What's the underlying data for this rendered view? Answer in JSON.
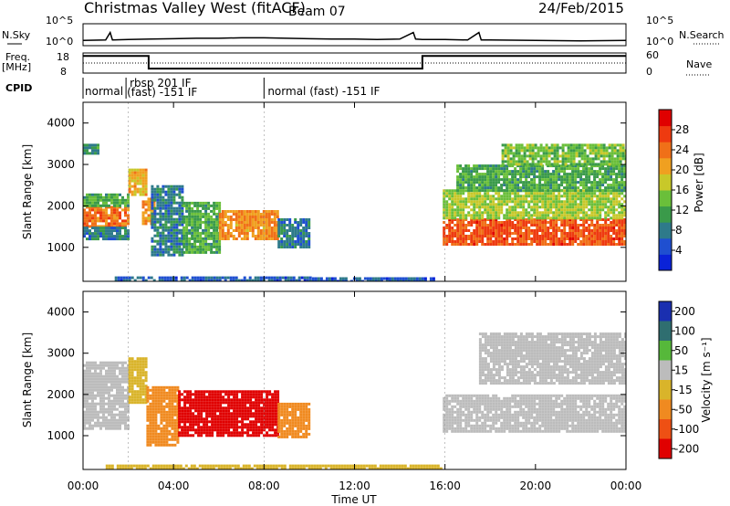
{
  "header": {
    "title": "Christmas Valley West (fitACF)",
    "beam": "Beam 07",
    "date": "24/Feb/2015"
  },
  "labels": {
    "nsky": "N.Sky",
    "nsearch": "N.Search",
    "freq": "Freq.",
    "mhz": "[MHz]",
    "nave": "Nave",
    "cpid": "CPID",
    "ylabel": "Slant Range [km]",
    "xlabel": "Time UT",
    "power_label": "Power [dB]",
    "velocity_label": "Velocity [m s⁻¹]"
  },
  "sky_axis": {
    "left_ticks": [
      "10^5",
      "10^0"
    ],
    "right_ticks": [
      "10^5",
      "10^0"
    ]
  },
  "freq_axis": {
    "left_ticks": [
      "18",
      "8"
    ],
    "right_ticks": [
      "60",
      "0"
    ]
  },
  "cpid_segments": [
    {
      "label": "normal",
      "start_hour": 0.0,
      "end_hour": 1.9
    },
    {
      "label": "rbsp 201 IF",
      "start_hour": 1.9,
      "end_hour": 8.0
    },
    {
      "label": "(fast) -151 IF",
      "start_hour": 1.9,
      "end_hour": 8.0
    },
    {
      "label": "normal (fast) -151 IF",
      "start_hour": 8.0,
      "end_hour": 24.0
    }
  ],
  "chart_data": [
    {
      "type": "line",
      "name": "sky-noise",
      "x": [
        0,
        1,
        1.2,
        1.3,
        2,
        3,
        4,
        5,
        6,
        7,
        8,
        9,
        10,
        11,
        12,
        13,
        14,
        14.6,
        14.7,
        15,
        16,
        17,
        17.5,
        17.6,
        18,
        20,
        22,
        24
      ],
      "y": [
        1.2,
        1.3,
        3.0,
        1.3,
        1.4,
        1.5,
        1.6,
        1.7,
        1.7,
        1.8,
        1.8,
        1.7,
        1.6,
        1.5,
        1.5,
        1.4,
        1.5,
        3.0,
        1.5,
        1.4,
        1.4,
        1.3,
        3.0,
        1.3,
        1.3,
        1.2,
        1.1,
        1.2
      ],
      "ylim": [
        0,
        5
      ],
      "xlim": [
        0,
        24
      ]
    },
    {
      "type": "line",
      "name": "frequency",
      "x": [
        0,
        2.9,
        2.9,
        15.0,
        15.0,
        24
      ],
      "y": [
        16.5,
        16.5,
        10.2,
        10.2,
        16.5,
        16.5
      ],
      "ylim": [
        8,
        18
      ],
      "xlim": [
        0,
        24
      ]
    },
    {
      "type": "line",
      "name": "nave",
      "x": [
        0,
        24
      ],
      "y": [
        30,
        30
      ],
      "ylim": [
        0,
        60
      ],
      "xlim": [
        0,
        24
      ]
    },
    {
      "type": "heatmap",
      "name": "power",
      "xlabel": "",
      "ylabel": "Slant Range [km]",
      "xlim": [
        0,
        24
      ],
      "ylim": [
        180,
        4500
      ],
      "yticks": [
        1000,
        2000,
        3000,
        4000
      ],
      "colorbar": {
        "label": "Power [dB]",
        "ticks": [
          4,
          8,
          12,
          16,
          20,
          24,
          28
        ],
        "range": [
          0,
          32
        ]
      },
      "regions": [
        {
          "t0": 0.0,
          "t1": 2.0,
          "r0": 1500,
          "r1": 2000,
          "value": 24
        },
        {
          "t0": 0.0,
          "t1": 2.0,
          "r0": 2000,
          "r1": 2300,
          "value": 12
        },
        {
          "t0": 0.0,
          "t1": 2.0,
          "r0": 1200,
          "r1": 1500,
          "value": 8
        },
        {
          "t0": 0.0,
          "t1": 0.7,
          "r0": 3300,
          "r1": 3500,
          "value": 10
        },
        {
          "t0": 2.0,
          "t1": 2.8,
          "r0": 2300,
          "r1": 2900,
          "value": 20
        },
        {
          "t0": 2.6,
          "t1": 3.2,
          "r0": 1600,
          "r1": 2200,
          "value": 22
        },
        {
          "t0": 3.0,
          "t1": 4.4,
          "r0": 800,
          "r1": 2500,
          "value": 8
        },
        {
          "t0": 4.4,
          "t1": 6.0,
          "r0": 900,
          "r1": 2100,
          "value": 12
        },
        {
          "t0": 6.0,
          "t1": 8.6,
          "r0": 1200,
          "r1": 1900,
          "value": 22
        },
        {
          "t0": 8.6,
          "t1": 10.0,
          "r0": 1000,
          "r1": 1700,
          "value": 8
        },
        {
          "t0": 1.4,
          "t1": 10.0,
          "r0": 180,
          "r1": 300,
          "value": 6
        },
        {
          "t0": 10.0,
          "t1": 15.5,
          "r0": 180,
          "r1": 280,
          "value": 6
        },
        {
          "t0": 15.9,
          "t1": 24.0,
          "r0": 1100,
          "r1": 1700,
          "value": 26
        },
        {
          "t0": 15.9,
          "t1": 24.0,
          "r0": 1700,
          "r1": 2400,
          "value": 16
        },
        {
          "t0": 16.5,
          "t1": 24.0,
          "r0": 2400,
          "r1": 3000,
          "value": 12
        },
        {
          "t0": 18.5,
          "t1": 24.0,
          "r0": 3000,
          "r1": 3500,
          "value": 14
        }
      ]
    },
    {
      "type": "heatmap",
      "name": "velocity",
      "xlabel": "Time UT",
      "ylabel": "Slant Range [km]",
      "xlim": [
        0,
        24
      ],
      "ylim": [
        180,
        4500
      ],
      "yticks": [
        1000,
        2000,
        3000,
        4000
      ],
      "xticks": [
        "00:00",
        "04:00",
        "08:00",
        "12:00",
        "16:00",
        "20:00",
        "00:00"
      ],
      "colorbar": {
        "label": "Velocity [m s⁻¹]",
        "ticks": [
          200,
          100,
          50,
          15,
          -15,
          -50,
          -100,
          -200
        ]
      },
      "regions": [
        {
          "t0": 0.0,
          "t1": 2.0,
          "r0": 1200,
          "r1": 2800,
          "value": 0
        },
        {
          "t0": 2.0,
          "t1": 2.8,
          "r0": 1800,
          "r1": 2900,
          "value": -40
        },
        {
          "t0": 2.8,
          "t1": 4.2,
          "r0": 800,
          "r1": 2200,
          "value": -80
        },
        {
          "t0": 4.2,
          "t1": 8.6,
          "r0": 1000,
          "r1": 2100,
          "value": -220
        },
        {
          "t0": 8.6,
          "t1": 10.0,
          "r0": 1000,
          "r1": 1800,
          "value": -90
        },
        {
          "t0": 15.9,
          "t1": 24.0,
          "r0": 1100,
          "r1": 2000,
          "value": 0
        },
        {
          "t0": 17.5,
          "t1": 24.0,
          "r0": 2300,
          "r1": 3500,
          "value": 0
        },
        {
          "t0": 1.0,
          "t1": 16.0,
          "r0": 180,
          "r1": 300,
          "value": -30
        }
      ]
    }
  ]
}
